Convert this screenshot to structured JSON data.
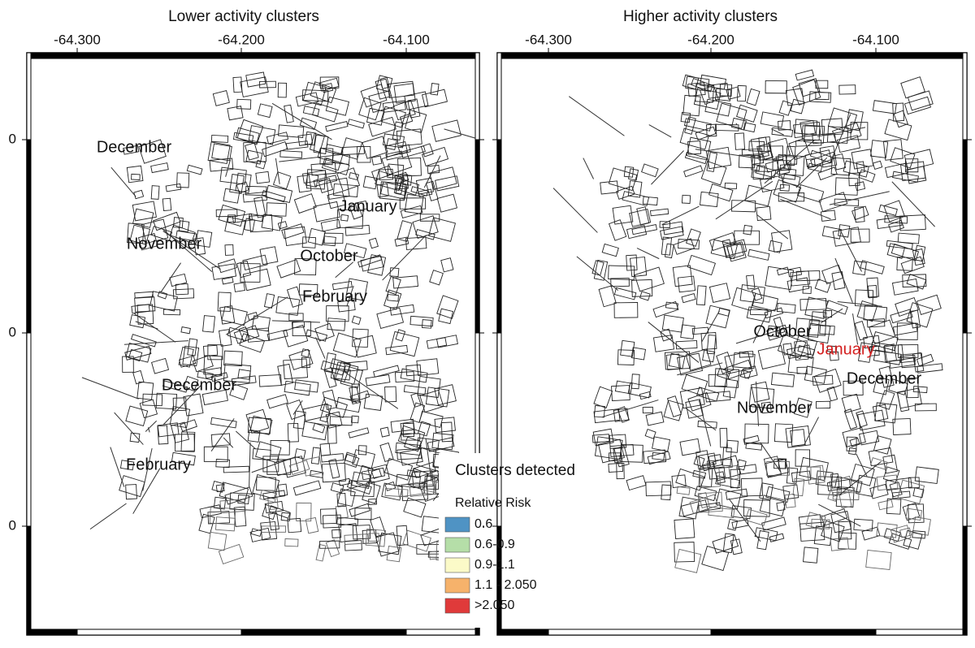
{
  "panels": [
    {
      "title": "Lower activity clusters",
      "x_labels": [
        "-64.300",
        "-64.200",
        "-64.100"
      ],
      "y_labels": [
        "0",
        "0",
        "0"
      ],
      "labels": [
        "December",
        "January",
        "November",
        "October",
        "February",
        "December",
        "February"
      ]
    },
    {
      "title": "Higher activity clusters",
      "x_labels": [
        "-64.300",
        "-64.200",
        "-64.100"
      ],
      "labels": [
        "October",
        "January",
        "December",
        "November"
      ]
    }
  ],
  "legend": {
    "title": "Clusters detected",
    "subtitle": "Relative Risk",
    "items": [
      {
        "label": "0.6",
        "color": "#4f93c4"
      },
      {
        "label": "0.6-0.9",
        "color": "#b5dea8"
      },
      {
        "label": "0.9-1.1",
        "color": "#fbfac8"
      },
      {
        "label": "1.1 - 2.050",
        "color": "#f6b26b"
      },
      {
        "label": ">2.050",
        "color": "#e03a3a"
      }
    ]
  }
}
